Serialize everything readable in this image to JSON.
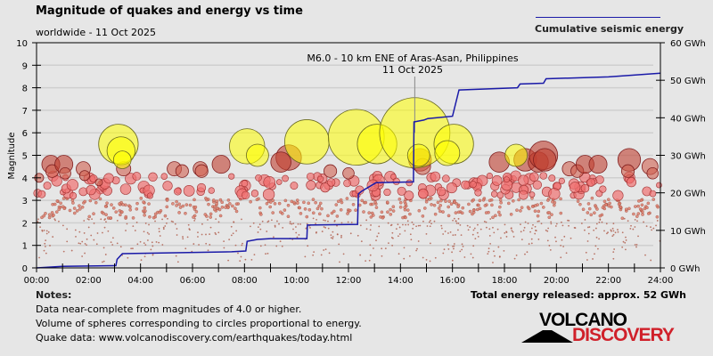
{
  "header": {
    "title": "Magnitude of quakes and energy vs time",
    "subtitle": "worldwide - 11 Oct 2025",
    "legend_label": "Cumulative seismic energy",
    "legend_color": "#1a1aa8"
  },
  "notes": {
    "title": "Notes:",
    "lines": [
      "Data near-complete from magnitudes of 4.0 or higher.",
      "Volume of spheres corresponding to circles proportional to energy.",
      "Quake data: www.volcanodiscovery.com/earthquakes/today.html"
    ],
    "total_energy": "Total energy released: approx. 52 GWh"
  },
  "logo": {
    "top": "VOLCANO",
    "bottom": "DISCOVERY",
    "accent_color": "#d0202a"
  },
  "chart_data": {
    "type": "scatter",
    "title": "Magnitude of quakes and energy vs time",
    "subtitle": "worldwide - 11 Oct 2025",
    "xlabel": "",
    "ylabel": "Magnitude",
    "y2label": "Cumulative seismic energy",
    "xlim_hours": [
      0,
      24
    ],
    "ylim": [
      0,
      10
    ],
    "y2lim_gwh": [
      0,
      60
    ],
    "x_ticks": [
      "00:00",
      "02:00",
      "04:00",
      "06:00",
      "08:00",
      "10:00",
      "12:00",
      "14:00",
      "16:00",
      "18:00",
      "20:00",
      "22:00",
      "24:00"
    ],
    "y_ticks": [
      "0",
      "1",
      "2",
      "3",
      "4",
      "5",
      "6",
      "7",
      "8",
      "9",
      "10"
    ],
    "y2_ticks": [
      "0 GWh",
      "10 GWh",
      "20 GWh",
      "30 GWh",
      "40 GWh",
      "50 GWh",
      "60 GWh"
    ],
    "grid": true,
    "legend": "top-right",
    "annotation": {
      "line1": "M6.0 - 10 km ENE of Aras-Asan, Philippines",
      "line2": "11 Oct 2025",
      "time_h": 14.55,
      "magnitude": 6.0
    },
    "energy_series": {
      "name": "Cumulative seismic energy",
      "unit": "GWh",
      "points": [
        [
          0.0,
          0.0
        ],
        [
          1.0,
          0.4
        ],
        [
          3.05,
          0.6
        ],
        [
          3.1,
          2.3
        ],
        [
          3.3,
          3.8
        ],
        [
          7.5,
          4.3
        ],
        [
          8.05,
          4.5
        ],
        [
          8.1,
          7.1
        ],
        [
          8.5,
          7.6
        ],
        [
          9.0,
          7.8
        ],
        [
          10.4,
          7.8
        ],
        [
          10.42,
          11.4
        ],
        [
          12.35,
          11.6
        ],
        [
          12.38,
          19.7
        ],
        [
          12.5,
          20.4
        ],
        [
          13.06,
          22.7
        ],
        [
          14.5,
          22.9
        ],
        [
          14.52,
          38.9
        ],
        [
          14.9,
          39.4
        ],
        [
          15.05,
          39.8
        ],
        [
          16.0,
          40.4
        ],
        [
          16.25,
          47.4
        ],
        [
          18.5,
          48.0
        ],
        [
          18.6,
          49.0
        ],
        [
          19.5,
          49.2
        ],
        [
          19.6,
          50.4
        ],
        [
          22.0,
          50.9
        ],
        [
          24.0,
          51.9
        ]
      ]
    },
    "large_quakes": [
      {
        "t": 3.15,
        "m": 5.5
      },
      {
        "t": 3.25,
        "m": 5.2
      },
      {
        "t": 3.3,
        "m": 4.8
      },
      {
        "t": 8.1,
        "m": 5.4
      },
      {
        "t": 8.5,
        "m": 5.0
      },
      {
        "t": 10.4,
        "m": 5.6
      },
      {
        "t": 12.3,
        "m": 5.8
      },
      {
        "t": 13.1,
        "m": 5.5
      },
      {
        "t": 14.55,
        "m": 6.0
      },
      {
        "t": 14.7,
        "m": 5.0
      },
      {
        "t": 16.05,
        "m": 5.5
      },
      {
        "t": 15.8,
        "m": 5.1
      },
      {
        "t": 18.45,
        "m": 5.0
      }
    ],
    "medium_quakes": [
      {
        "t": 0.1,
        "m": 4.0
      },
      {
        "t": 0.55,
        "m": 4.6
      },
      {
        "t": 0.6,
        "m": 4.3
      },
      {
        "t": 1.05,
        "m": 4.6
      },
      {
        "t": 1.1,
        "m": 4.2
      },
      {
        "t": 1.8,
        "m": 4.4
      },
      {
        "t": 1.85,
        "m": 4.1
      },
      {
        "t": 2.4,
        "m": 3.8
      },
      {
        "t": 3.35,
        "m": 4.4
      },
      {
        "t": 5.3,
        "m": 4.4
      },
      {
        "t": 5.6,
        "m": 4.3
      },
      {
        "t": 6.3,
        "m": 4.4
      },
      {
        "t": 6.35,
        "m": 4.3
      },
      {
        "t": 7.1,
        "m": 4.6
      },
      {
        "t": 9.7,
        "m": 4.9
      },
      {
        "t": 9.4,
        "m": 4.7
      },
      {
        "t": 11.3,
        "m": 4.3
      },
      {
        "t": 12.0,
        "m": 4.2
      },
      {
        "t": 14.75,
        "m": 4.8
      },
      {
        "t": 14.85,
        "m": 4.5
      },
      {
        "t": 17.8,
        "m": 4.7
      },
      {
        "t": 18.8,
        "m": 4.8
      },
      {
        "t": 19.3,
        "m": 4.7
      },
      {
        "t": 19.5,
        "m": 5.0
      },
      {
        "t": 19.55,
        "m": 4.8
      },
      {
        "t": 20.5,
        "m": 4.4
      },
      {
        "t": 20.8,
        "m": 4.3
      },
      {
        "t": 21.1,
        "m": 4.6
      },
      {
        "t": 21.6,
        "m": 4.6
      },
      {
        "t": 22.8,
        "m": 4.8
      },
      {
        "t": 22.75,
        "m": 4.3
      },
      {
        "t": 23.6,
        "m": 4.5
      },
      {
        "t": 23.7,
        "m": 4.2
      }
    ]
  }
}
